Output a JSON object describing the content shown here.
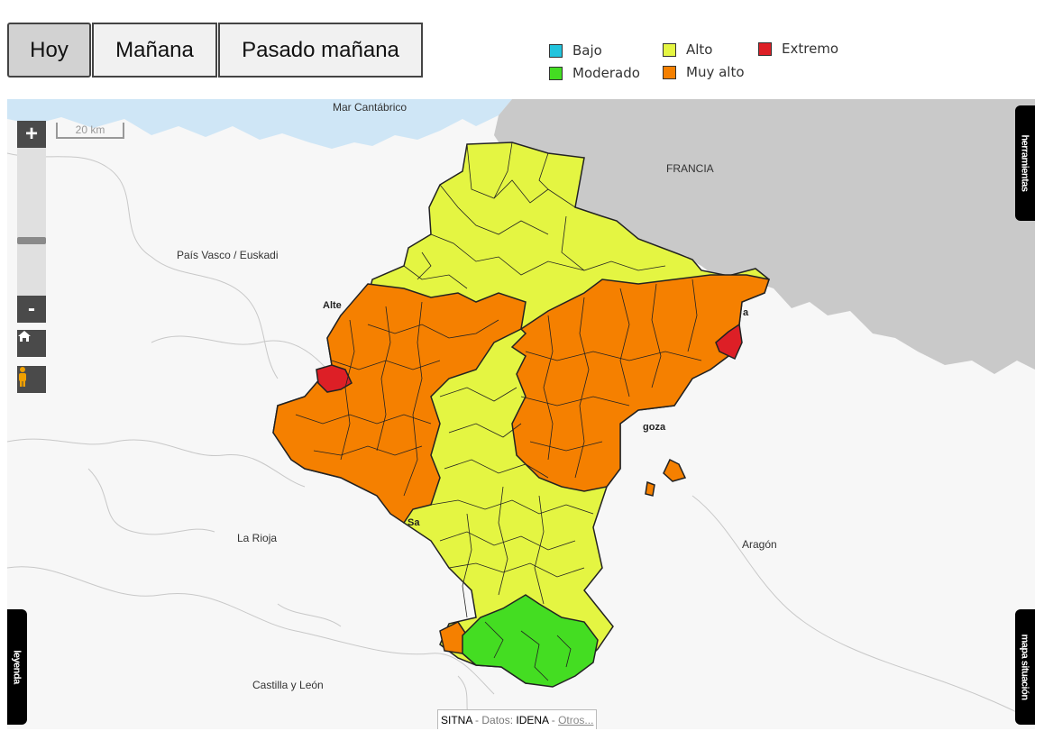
{
  "tabs": [
    {
      "label": "Hoy",
      "active": true
    },
    {
      "label": "Mañana",
      "active": false
    },
    {
      "label": "Pasado mañana",
      "active": false
    }
  ],
  "legend": [
    {
      "label": "Bajo",
      "color": "#22c4dd"
    },
    {
      "label": "Moderado",
      "color": "#44dd22"
    },
    {
      "label": "Alto",
      "color": "#e4f542"
    },
    {
      "label": "Muy alto",
      "color": "#f58000"
    },
    {
      "label": "Extremo",
      "color": "#dd1f26"
    }
  ],
  "map": {
    "labels": {
      "sea": "Mar Cantábrico",
      "francia": "FRANCIA",
      "pais_vasco": "País Vasco / Euskadi",
      "la_rioja": "La Rioja",
      "aragon": "Aragón",
      "castilla": "Castilla y León"
    },
    "cities": {
      "alte": "Alte",
      "goza": "goza",
      "sa": "Sa",
      "a": "a"
    },
    "scale": "20 km",
    "zoom_in": "+",
    "zoom_out": "-",
    "side_tabs": {
      "tools": "herramientas",
      "legend": "leyenda",
      "location": "mapa situación"
    }
  },
  "attribution": {
    "source": "SITNA",
    "sep1": " - ",
    "data": "Datos:",
    "provider": " IDENA",
    "sep2": " - ",
    "more": "Otros..."
  }
}
